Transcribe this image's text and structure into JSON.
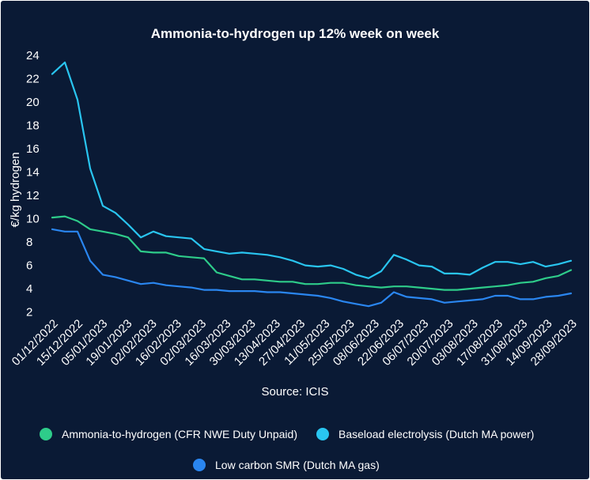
{
  "chart_data": {
    "type": "line",
    "title": "Ammonia-to-hydrogen up 12% week on week",
    "ylabel": "€/kg hydrogen",
    "xlabel": "",
    "source": "Source: ICIS",
    "ylim": [
      1.5,
      24
    ],
    "yticks": [
      2,
      4,
      6,
      8,
      10,
      12,
      14,
      16,
      18,
      20,
      22,
      24
    ],
    "grid": false,
    "legend_position": "bottom",
    "x_tick_labels": [
      "01/12/2022",
      "15/12/2022",
      "05/01/2023",
      "19/01/2023",
      "02/02/2023",
      "16/02/2023",
      "02/03/2023",
      "16/03/2023",
      "30/03/2023",
      "13/04/2023",
      "27/04/2023",
      "11/05/2023",
      "25/05/2023",
      "08/06/2023",
      "22/06/2023",
      "06/07/2023",
      "20/07/2023",
      "03/08/2023",
      "17/08/2023",
      "31/08/2023",
      "14/09/2023",
      "28/09/2023"
    ],
    "series": [
      {
        "name": "Ammonia-to-hydrogen (CFR NWE Duty Unpaid)",
        "color": "#2ecc8a",
        "values": [
          10.1,
          10.2,
          9.8,
          9.1,
          8.9,
          8.7,
          8.4,
          7.2,
          7.1,
          7.1,
          6.8,
          6.7,
          6.6,
          5.4,
          5.1,
          4.8,
          4.8,
          4.7,
          4.6,
          4.6,
          4.4,
          4.4,
          4.5,
          4.5,
          4.3,
          4.2,
          4.1,
          4.2,
          4.2,
          4.1,
          4.0,
          3.9,
          3.9,
          4.0,
          4.1,
          4.2,
          4.3,
          4.5,
          4.6,
          4.9,
          5.1,
          5.6
        ]
      },
      {
        "name": "Baseload electrolysis (Dutch MA power)",
        "color": "#29c5f0",
        "values": [
          22.4,
          23.4,
          20.2,
          14.3,
          11.1,
          10.5,
          9.5,
          8.4,
          8.9,
          8.5,
          8.4,
          8.3,
          7.4,
          7.2,
          7.0,
          7.1,
          7.0,
          6.9,
          6.7,
          6.4,
          6.0,
          5.9,
          6.0,
          5.7,
          5.2,
          4.9,
          5.5,
          6.9,
          6.5,
          6.0,
          5.9,
          5.3,
          5.3,
          5.2,
          5.8,
          6.3,
          6.3,
          6.1,
          6.3,
          5.9,
          6.1,
          6.4
        ]
      },
      {
        "name": "Low carbon SMR (Dutch MA gas)",
        "color": "#2a86f0",
        "values": [
          9.1,
          8.9,
          8.9,
          6.4,
          5.2,
          5.0,
          4.7,
          4.4,
          4.5,
          4.3,
          4.2,
          4.1,
          3.9,
          3.9,
          3.8,
          3.8,
          3.8,
          3.7,
          3.7,
          3.6,
          3.5,
          3.4,
          3.2,
          2.9,
          2.7,
          2.5,
          2.8,
          3.7,
          3.3,
          3.2,
          3.1,
          2.8,
          2.9,
          3.0,
          3.1,
          3.4,
          3.4,
          3.1,
          3.1,
          3.3,
          3.4,
          3.6
        ]
      }
    ]
  }
}
